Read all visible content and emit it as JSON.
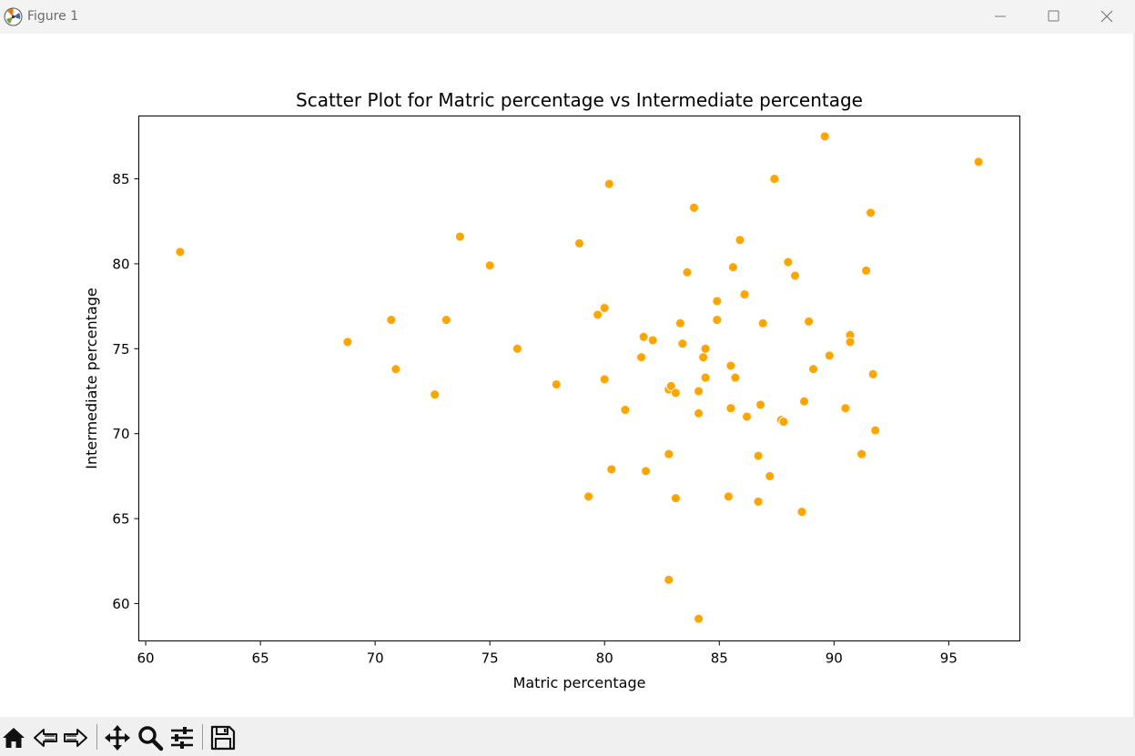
{
  "window": {
    "title": "Figure 1",
    "controls": [
      "minimize",
      "maximize",
      "close"
    ]
  },
  "colors": {
    "point_fill": "#ffa500",
    "point_stroke": "#ffffff",
    "axes": "#000000",
    "titlebar_bg": "#f3f3f3",
    "toolbar_bg": "#f0f0f0"
  },
  "toolbar": {
    "buttons": [
      {
        "name": "home-icon"
      },
      {
        "name": "back-icon"
      },
      {
        "name": "forward-icon"
      },
      {
        "name": "pan-icon"
      },
      {
        "name": "zoom-icon"
      },
      {
        "name": "configure-subplots-icon"
      },
      {
        "name": "save-icon"
      }
    ]
  },
  "chart_data": {
    "type": "scatter",
    "title": "Scatter Plot for Matric percentage vs Intermediate percentage",
    "xlabel": "Matric percentage",
    "ylabel": "Intermediate percentage",
    "xlim": [
      59.7,
      98.1
    ],
    "ylim": [
      57.8,
      88.7
    ],
    "xticks": [
      60,
      65,
      70,
      75,
      80,
      85,
      90,
      95
    ],
    "yticks": [
      60,
      65,
      70,
      75,
      80,
      85
    ],
    "grid": false,
    "points": [
      {
        "x": 61.5,
        "y": 80.7
      },
      {
        "x": 68.8,
        "y": 75.4
      },
      {
        "x": 70.7,
        "y": 76.7
      },
      {
        "x": 70.9,
        "y": 73.8
      },
      {
        "x": 72.6,
        "y": 72.3
      },
      {
        "x": 73.1,
        "y": 76.7
      },
      {
        "x": 73.7,
        "y": 81.6
      },
      {
        "x": 75.0,
        "y": 79.9
      },
      {
        "x": 76.2,
        "y": 75.0
      },
      {
        "x": 77.9,
        "y": 72.9
      },
      {
        "x": 78.9,
        "y": 81.2
      },
      {
        "x": 79.3,
        "y": 66.3
      },
      {
        "x": 79.7,
        "y": 77.0
      },
      {
        "x": 80.0,
        "y": 77.4
      },
      {
        "x": 80.0,
        "y": 73.2
      },
      {
        "x": 80.2,
        "y": 84.7
      },
      {
        "x": 80.3,
        "y": 67.9
      },
      {
        "x": 80.9,
        "y": 71.4
      },
      {
        "x": 81.6,
        "y": 74.5
      },
      {
        "x": 81.7,
        "y": 75.7
      },
      {
        "x": 81.8,
        "y": 67.8
      },
      {
        "x": 82.1,
        "y": 75.5
      },
      {
        "x": 82.8,
        "y": 61.4
      },
      {
        "x": 82.8,
        "y": 68.8
      },
      {
        "x": 82.8,
        "y": 72.6
      },
      {
        "x": 82.9,
        "y": 72.8
      },
      {
        "x": 83.1,
        "y": 66.2
      },
      {
        "x": 83.1,
        "y": 72.4
      },
      {
        "x": 83.3,
        "y": 76.5
      },
      {
        "x": 83.4,
        "y": 75.3
      },
      {
        "x": 83.6,
        "y": 79.5
      },
      {
        "x": 83.9,
        "y": 83.3
      },
      {
        "x": 84.1,
        "y": 59.1
      },
      {
        "x": 84.1,
        "y": 72.5
      },
      {
        "x": 84.1,
        "y": 71.2
      },
      {
        "x": 84.3,
        "y": 74.5
      },
      {
        "x": 84.4,
        "y": 75.0
      },
      {
        "x": 84.4,
        "y": 73.3
      },
      {
        "x": 84.9,
        "y": 77.8
      },
      {
        "x": 84.9,
        "y": 76.7
      },
      {
        "x": 85.4,
        "y": 66.3
      },
      {
        "x": 85.5,
        "y": 74.0
      },
      {
        "x": 85.5,
        "y": 71.5
      },
      {
        "x": 85.6,
        "y": 79.8
      },
      {
        "x": 85.7,
        "y": 73.3
      },
      {
        "x": 85.9,
        "y": 81.4
      },
      {
        "x": 86.1,
        "y": 78.2
      },
      {
        "x": 86.2,
        "y": 71.0
      },
      {
        "x": 86.7,
        "y": 68.7
      },
      {
        "x": 86.7,
        "y": 66.0
      },
      {
        "x": 86.8,
        "y": 71.7
      },
      {
        "x": 86.9,
        "y": 76.5
      },
      {
        "x": 87.2,
        "y": 67.5
      },
      {
        "x": 87.4,
        "y": 85.0
      },
      {
        "x": 87.7,
        "y": 70.8
      },
      {
        "x": 87.8,
        "y": 70.7
      },
      {
        "x": 88.0,
        "y": 80.1
      },
      {
        "x": 88.3,
        "y": 79.3
      },
      {
        "x": 88.6,
        "y": 65.4
      },
      {
        "x": 88.7,
        "y": 71.9
      },
      {
        "x": 88.9,
        "y": 76.6
      },
      {
        "x": 89.1,
        "y": 73.8
      },
      {
        "x": 89.6,
        "y": 87.5
      },
      {
        "x": 89.8,
        "y": 74.6
      },
      {
        "x": 90.5,
        "y": 71.5
      },
      {
        "x": 90.7,
        "y": 75.8
      },
      {
        "x": 90.7,
        "y": 75.4
      },
      {
        "x": 91.2,
        "y": 68.8
      },
      {
        "x": 91.4,
        "y": 79.6
      },
      {
        "x": 91.6,
        "y": 83.0
      },
      {
        "x": 91.7,
        "y": 73.5
      },
      {
        "x": 91.8,
        "y": 70.2
      },
      {
        "x": 96.3,
        "y": 86.0
      }
    ]
  }
}
